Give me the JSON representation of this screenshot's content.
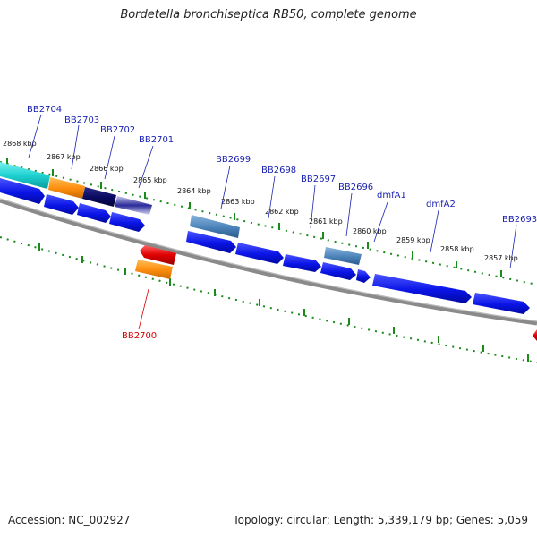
{
  "title": "Bordetella bronchiseptica RB50, complete genome",
  "footer": {
    "accession": "Accession: NC_002927",
    "info": "Topology: circular; Length: 5,339,179 bp; Genes: 5,059"
  },
  "ruler_labels": [
    "2868 kbp",
    "2867 kbp",
    "2866 kbp",
    "2865 kbp",
    "2864 kbp",
    "2863 kbp",
    "2862 kbp",
    "2861 kbp",
    "2860 kbp",
    "2859 kbp",
    "2858 kbp",
    "2857 kbp"
  ],
  "gene_labels": [
    "BB2704",
    "BB2703",
    "BB2702",
    "BB2701",
    "BB2699",
    "BB2698",
    "BB2697",
    "BB2696",
    "dmfA1",
    "dmfA2",
    "BB2693",
    "BB2700"
  ],
  "colors": {
    "forward_gene": "#0a14e6",
    "reverse_gene": "#e00000",
    "backbone": "#777777",
    "ruler_ticks": "#1a8a1a",
    "label_text": "#1a22b0"
  }
}
